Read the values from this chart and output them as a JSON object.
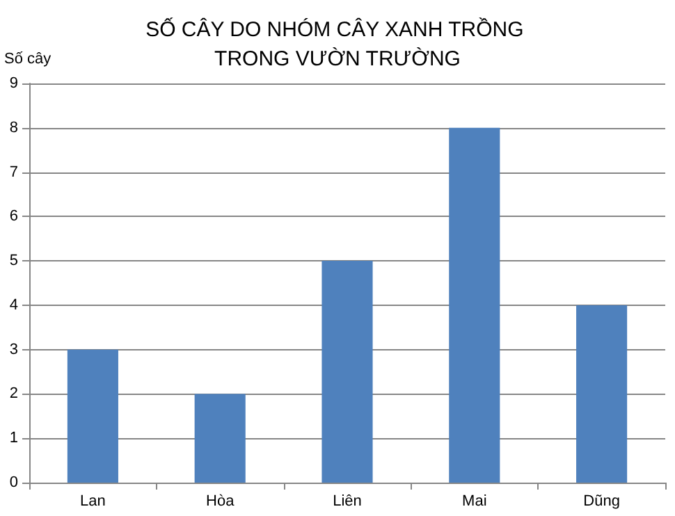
{
  "chart_data": {
    "type": "bar",
    "title": "SỐ CÂY DO NHÓM CÂY XANH TRỒNG TRONG VƯỜN TRƯỜNG",
    "ylabel": "Số cây",
    "categories": [
      "Lan",
      "Hòa",
      "Liên",
      "Mai",
      "Dũng"
    ],
    "values": [
      3,
      2,
      5,
      8,
      4
    ],
    "color": "#4f81bd",
    "ylim": [
      0,
      9
    ],
    "yticks": [
      0,
      1,
      2,
      3,
      4,
      5,
      6,
      7,
      8,
      9
    ],
    "grid": "y"
  }
}
